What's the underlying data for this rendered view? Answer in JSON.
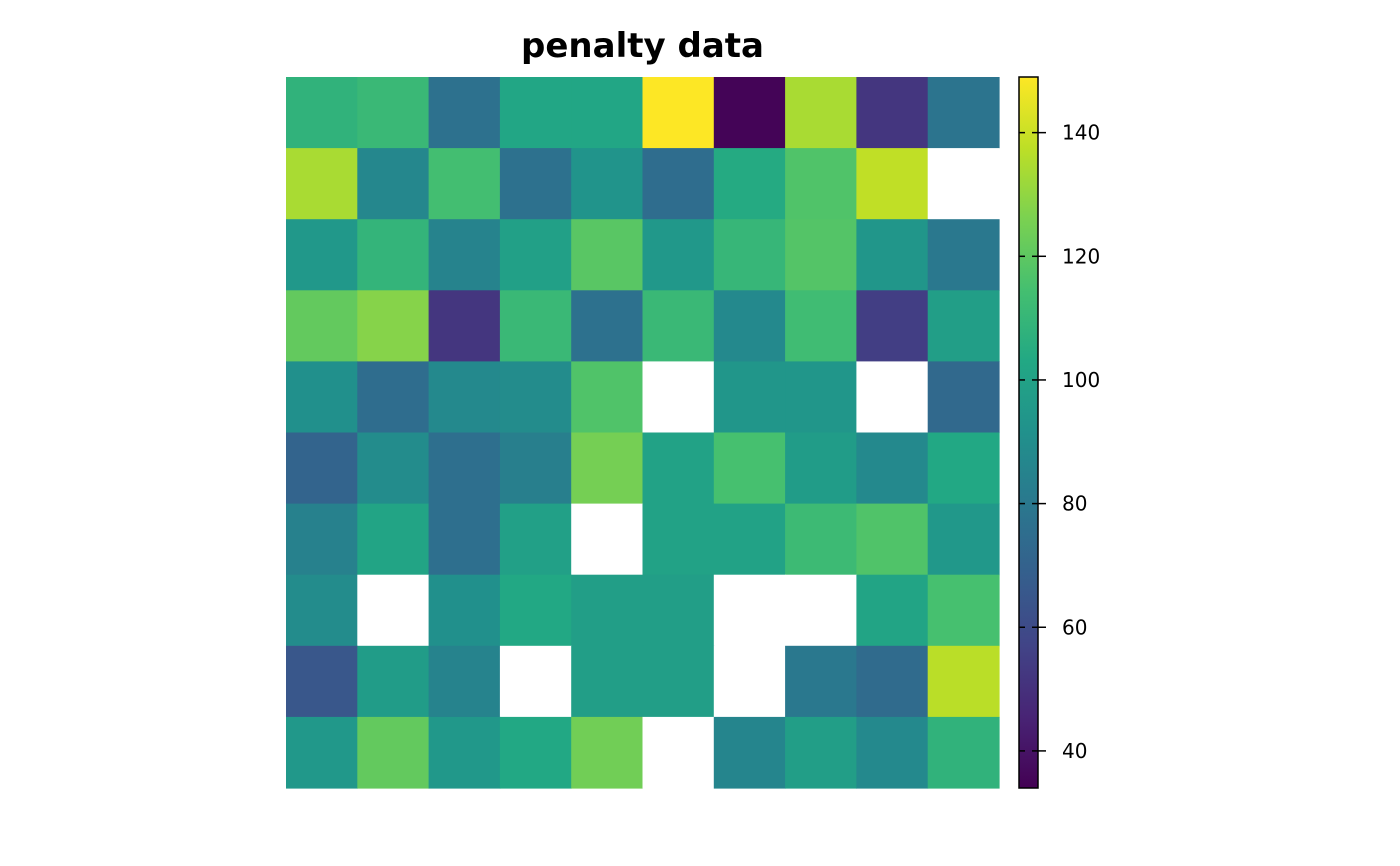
{
  "chart_data": {
    "type": "heatmap",
    "title": "penalty data",
    "rows": 10,
    "cols": 10,
    "values": [
      [
        108,
        111,
        77,
        102,
        102,
        149,
        35,
        134,
        52,
        78
      ],
      [
        134,
        87,
        114,
        77,
        93,
        75,
        104,
        117,
        138,
        null
      ],
      [
        95,
        109,
        85,
        99,
        119,
        95,
        110,
        118,
        94,
        80
      ],
      [
        121,
        128,
        52,
        111,
        77,
        111,
        88,
        113,
        55,
        98
      ],
      [
        91,
        75,
        88,
        89,
        117,
        null,
        94,
        94,
        null,
        73
      ],
      [
        71,
        89,
        76,
        83,
        125,
        100,
        115,
        97,
        88,
        103
      ],
      [
        84,
        101,
        76,
        99,
        null,
        100,
        100,
        112,
        117,
        95
      ],
      [
        89,
        null,
        91,
        103,
        98,
        98,
        null,
        null,
        101,
        115
      ],
      [
        65,
        97,
        85,
        null,
        98,
        98,
        null,
        80,
        74,
        137
      ],
      [
        95,
        121,
        95,
        103,
        124,
        null,
        86,
        98,
        88,
        108
      ]
    ],
    "colorbar": {
      "min": 34,
      "max": 149,
      "ticks": [
        40,
        60,
        80,
        100,
        120,
        140
      ],
      "colormap": "viridis"
    },
    "missing_color": "#ffffff"
  }
}
